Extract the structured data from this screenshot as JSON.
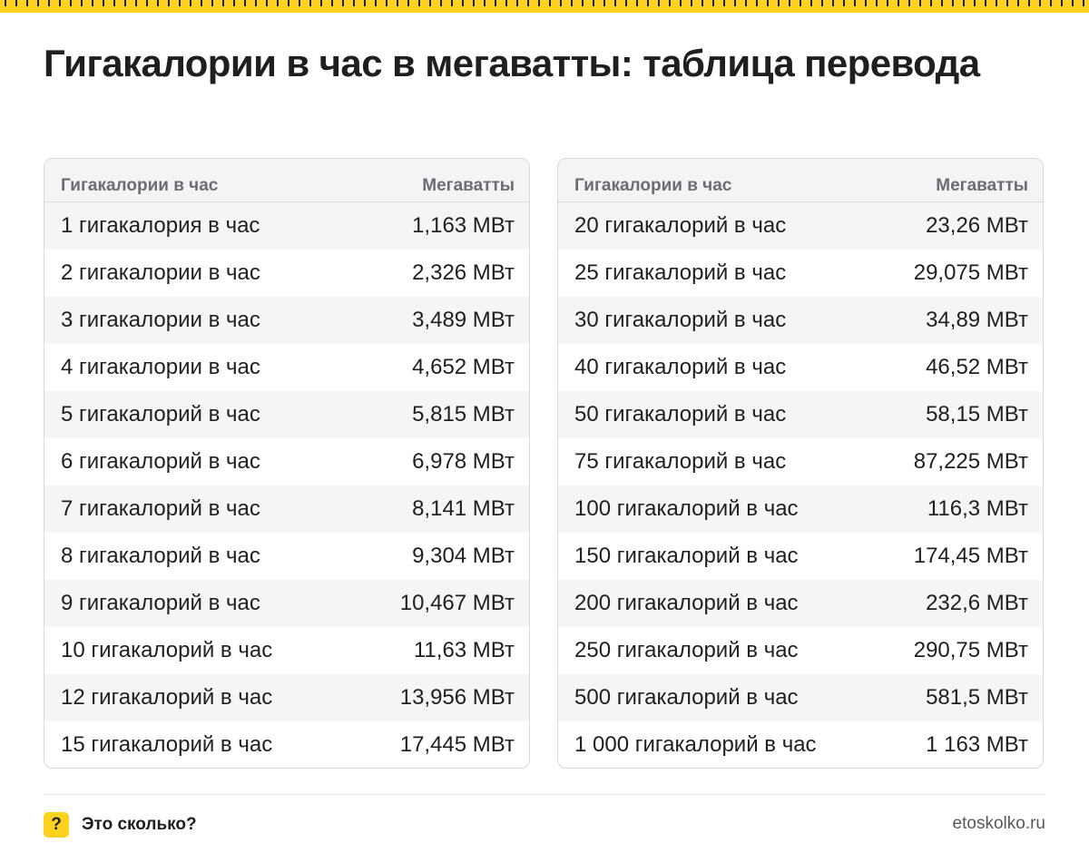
{
  "title": "Гигакалории в час в мегаватты: таблица перевода",
  "left_table": {
    "headers": [
      "Гигакалории в час",
      "Мегаватты"
    ],
    "rows": [
      [
        "1 гигакалория в час",
        "1,163 МВт"
      ],
      [
        "2 гигакалории в час",
        "2,326 МВт"
      ],
      [
        "3 гигакалории в час",
        "3,489 МВт"
      ],
      [
        "4 гигакалории в час",
        "4,652 МВт"
      ],
      [
        "5 гигакалорий в час",
        "5,815 МВт"
      ],
      [
        "6 гигакалорий в час",
        "6,978 МВт"
      ],
      [
        "7 гигакалорий в час",
        "8,141 МВт"
      ],
      [
        "8 гигакалорий в час",
        "9,304 МВт"
      ],
      [
        "9 гигакалорий в час",
        "10,467 МВт"
      ],
      [
        "10 гигакалорий в час",
        "11,63 МВт"
      ],
      [
        "12 гигакалорий в час",
        "13,956 МВт"
      ],
      [
        "15 гигакалорий в час",
        "17,445 МВт"
      ]
    ]
  },
  "right_table": {
    "headers": [
      "Гигакалории в час",
      "Мегаватты"
    ],
    "rows": [
      [
        "20 гигакалорий в час",
        "23,26 МВт"
      ],
      [
        "25 гигакалорий в час",
        "29,075 МВт"
      ],
      [
        "30 гигакалорий в час",
        "34,89 МВт"
      ],
      [
        "40 гигакалорий в час",
        "46,52 МВт"
      ],
      [
        "50 гигакалорий в час",
        "58,15 МВт"
      ],
      [
        "75 гигакалорий в час",
        "87,225 МВт"
      ],
      [
        "100 гигакалорий в час",
        "116,3 МВт"
      ],
      [
        "150 гигакалорий в час",
        "174,45 МВт"
      ],
      [
        "200 гигакалорий в час",
        "232,6 МВт"
      ],
      [
        "250 гигакалорий в час",
        "290,75 МВт"
      ],
      [
        "500 гигакалорий в час",
        "581,5 МВт"
      ],
      [
        "1 000 гигакалорий в час",
        "1 163 МВт"
      ]
    ]
  },
  "footer": {
    "badge": "?",
    "brand": "Это сколько?",
    "site": "etoskolko.ru"
  },
  "colors": {
    "accent": "#fcd21e",
    "text": "#1f1f1f",
    "header_text": "#6a6d72",
    "stripe": "#f4f5f7",
    "border": "#d6d8dc"
  }
}
